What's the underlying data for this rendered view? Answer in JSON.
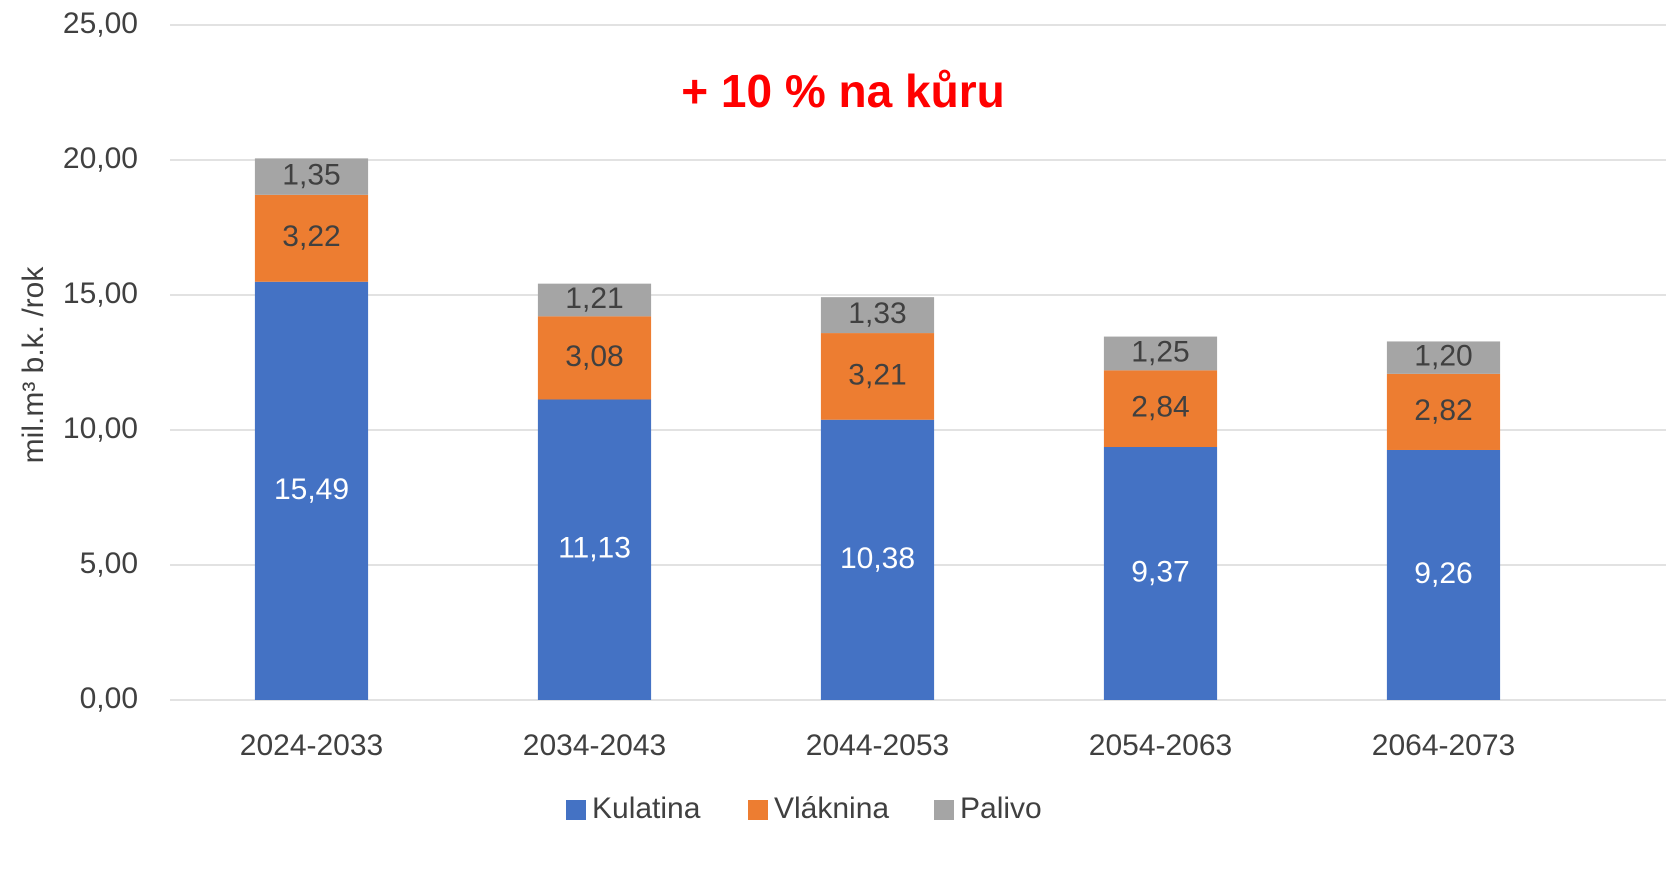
{
  "chart_data": {
    "type": "stacked_bar",
    "title": "+ 10 % na kůru",
    "y_label": "mil.m³ b.k. /rok",
    "categories": [
      "2024-2033",
      "2034-2043",
      "2044-2053",
      "2054-2063",
      "2064-2073"
    ],
    "series": [
      {
        "name": "Kulatina",
        "color": "#4472c4",
        "values": [
          15.49,
          11.13,
          10.38,
          9.37,
          9.26
        ],
        "value_labels": [
          "15,49",
          "11,13",
          "10,38",
          "9,37",
          "9,26"
        ]
      },
      {
        "name": "Vláknina",
        "color": "#ed7d31",
        "values": [
          3.22,
          3.08,
          3.21,
          2.84,
          2.82
        ],
        "value_labels": [
          "3,22",
          "3,08",
          "3,21",
          "2,84",
          "2,82"
        ]
      },
      {
        "name": "Palivo",
        "color": "#a5a5a5",
        "values": [
          1.35,
          1.21,
          1.33,
          1.25,
          1.2
        ],
        "value_labels": [
          "1,35",
          "1,21",
          "1,33",
          "1,25",
          "1,20"
        ]
      }
    ],
    "ylim": [
      0,
      25
    ],
    "yticks": [
      {
        "value": 0,
        "label": "0,00"
      },
      {
        "value": 5,
        "label": "5,00"
      },
      {
        "value": 10,
        "label": "10,00"
      },
      {
        "value": 15,
        "label": "15,00"
      },
      {
        "value": 20,
        "label": "20,00"
      },
      {
        "value": 25,
        "label": "25,00"
      }
    ],
    "grid": true,
    "legend": "bottom"
  }
}
